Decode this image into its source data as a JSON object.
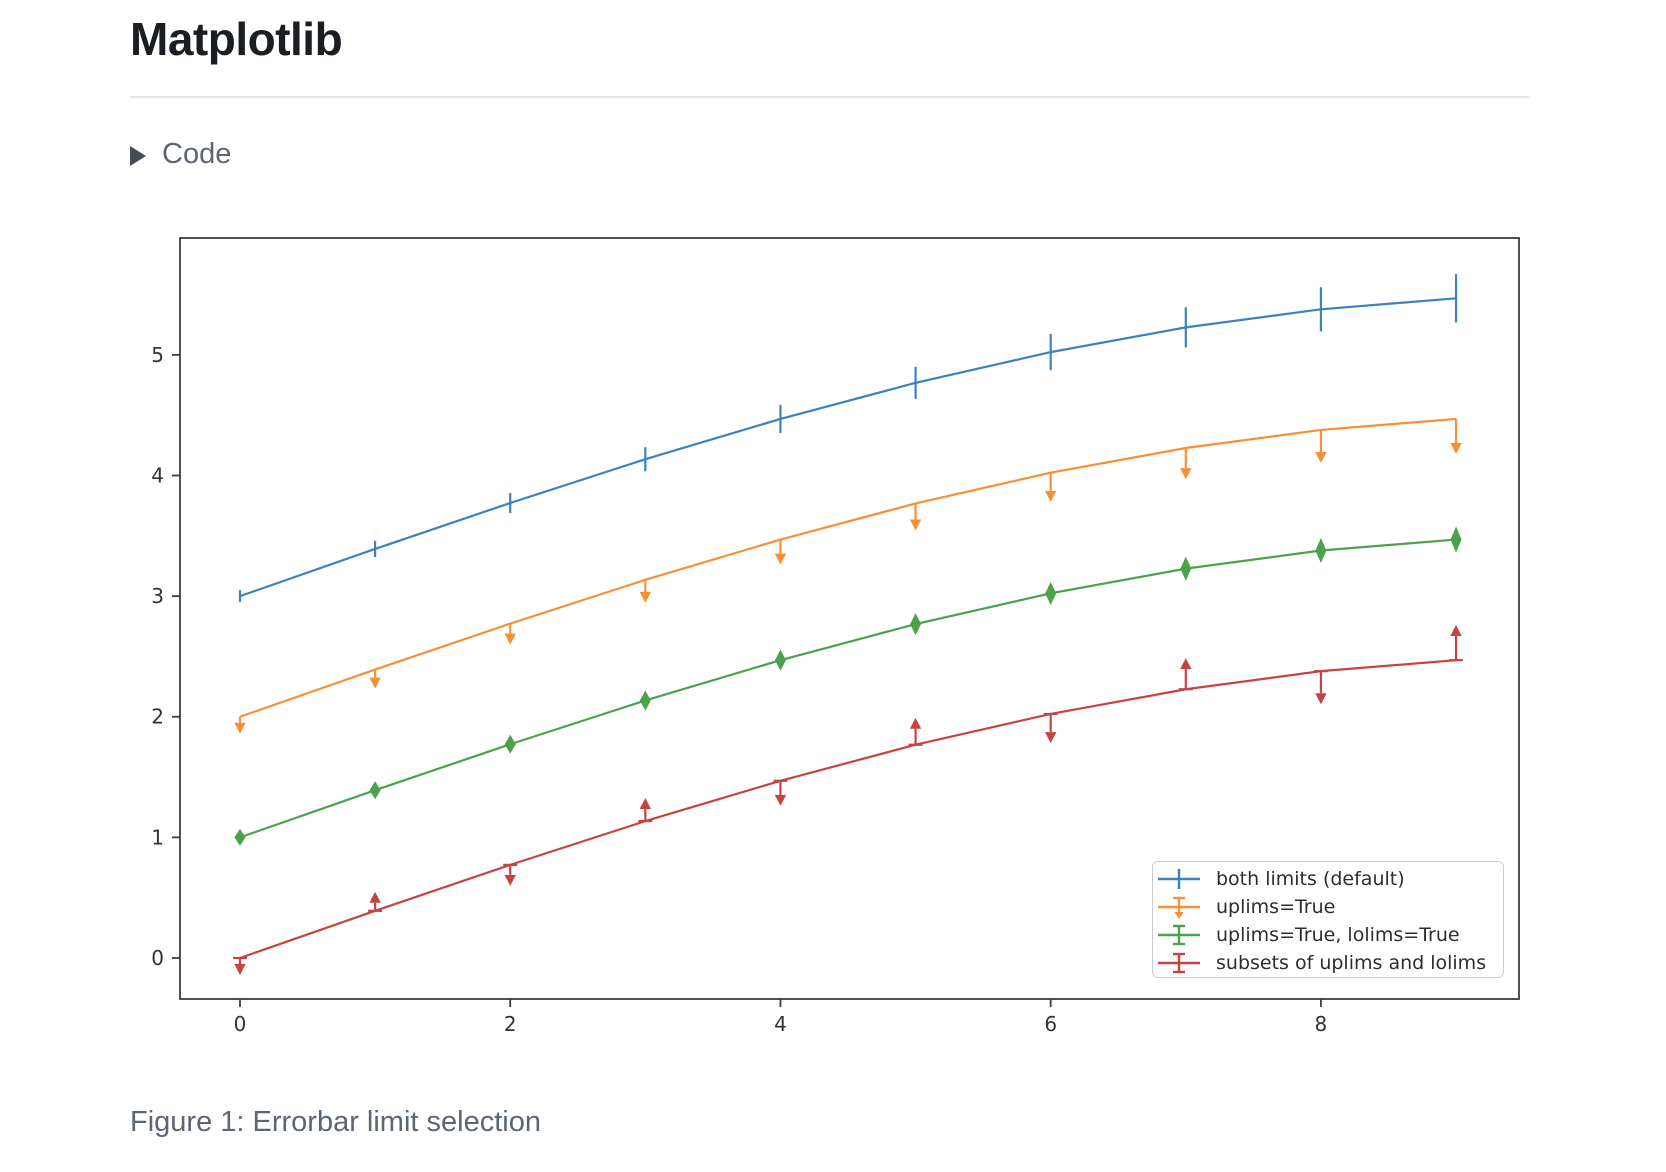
{
  "page": {
    "title": "Matplotlib",
    "code_toggle": {
      "label": "Code",
      "icon": "triangle-right"
    },
    "caption": "Figure 1: Errorbar limit selection"
  },
  "chart_data": {
    "type": "line",
    "variant": "errorbar-limits",
    "title": "",
    "xlabel": "",
    "ylabel": "",
    "grid": false,
    "legend_position": "lower right",
    "x": [
      0,
      1,
      2,
      3,
      4,
      5,
      6,
      7,
      8,
      9
    ],
    "xticks": [
      0,
      2,
      4,
      6,
      8
    ],
    "yticks": [
      0,
      1,
      2,
      3,
      4,
      5
    ],
    "xlim": [
      -0.444,
      9.466
    ],
    "ylim": [
      -0.34,
      5.969
    ],
    "yerr": [
      0.05,
      0.067,
      0.083,
      0.1,
      0.117,
      0.133,
      0.15,
      0.167,
      0.183,
      0.2
    ],
    "axis_color": "#3c3c3c",
    "series": [
      {
        "name": "both limits (default)",
        "color": "#3c82bc",
        "limits": "bars",
        "y": [
          3.0,
          3.391,
          3.772,
          4.135,
          4.469,
          4.768,
          5.023,
          5.228,
          5.378,
          5.469
        ]
      },
      {
        "name": "uplims=True",
        "color": "#f79035",
        "limits": "uplims",
        "y": [
          2.0,
          2.391,
          2.772,
          3.135,
          3.469,
          3.768,
          4.023,
          4.228,
          4.378,
          4.469
        ]
      },
      {
        "name": "uplims=True, lolims=True",
        "color": "#4ba24b",
        "limits": "uplims+lolims",
        "y": [
          1.0,
          1.391,
          1.772,
          2.135,
          2.469,
          2.768,
          3.023,
          3.228,
          3.378,
          3.469
        ]
      },
      {
        "name": "subsets of uplims and lolims",
        "color": "#c54443",
        "limits": "alternating",
        "uplims_at": [
          0,
          2,
          4,
          6,
          8
        ],
        "lolims_at": [
          1,
          3,
          5,
          7,
          9
        ],
        "y": [
          0.0,
          0.391,
          0.772,
          1.135,
          1.469,
          1.768,
          2.023,
          2.228,
          2.378,
          2.469
        ]
      }
    ]
  }
}
